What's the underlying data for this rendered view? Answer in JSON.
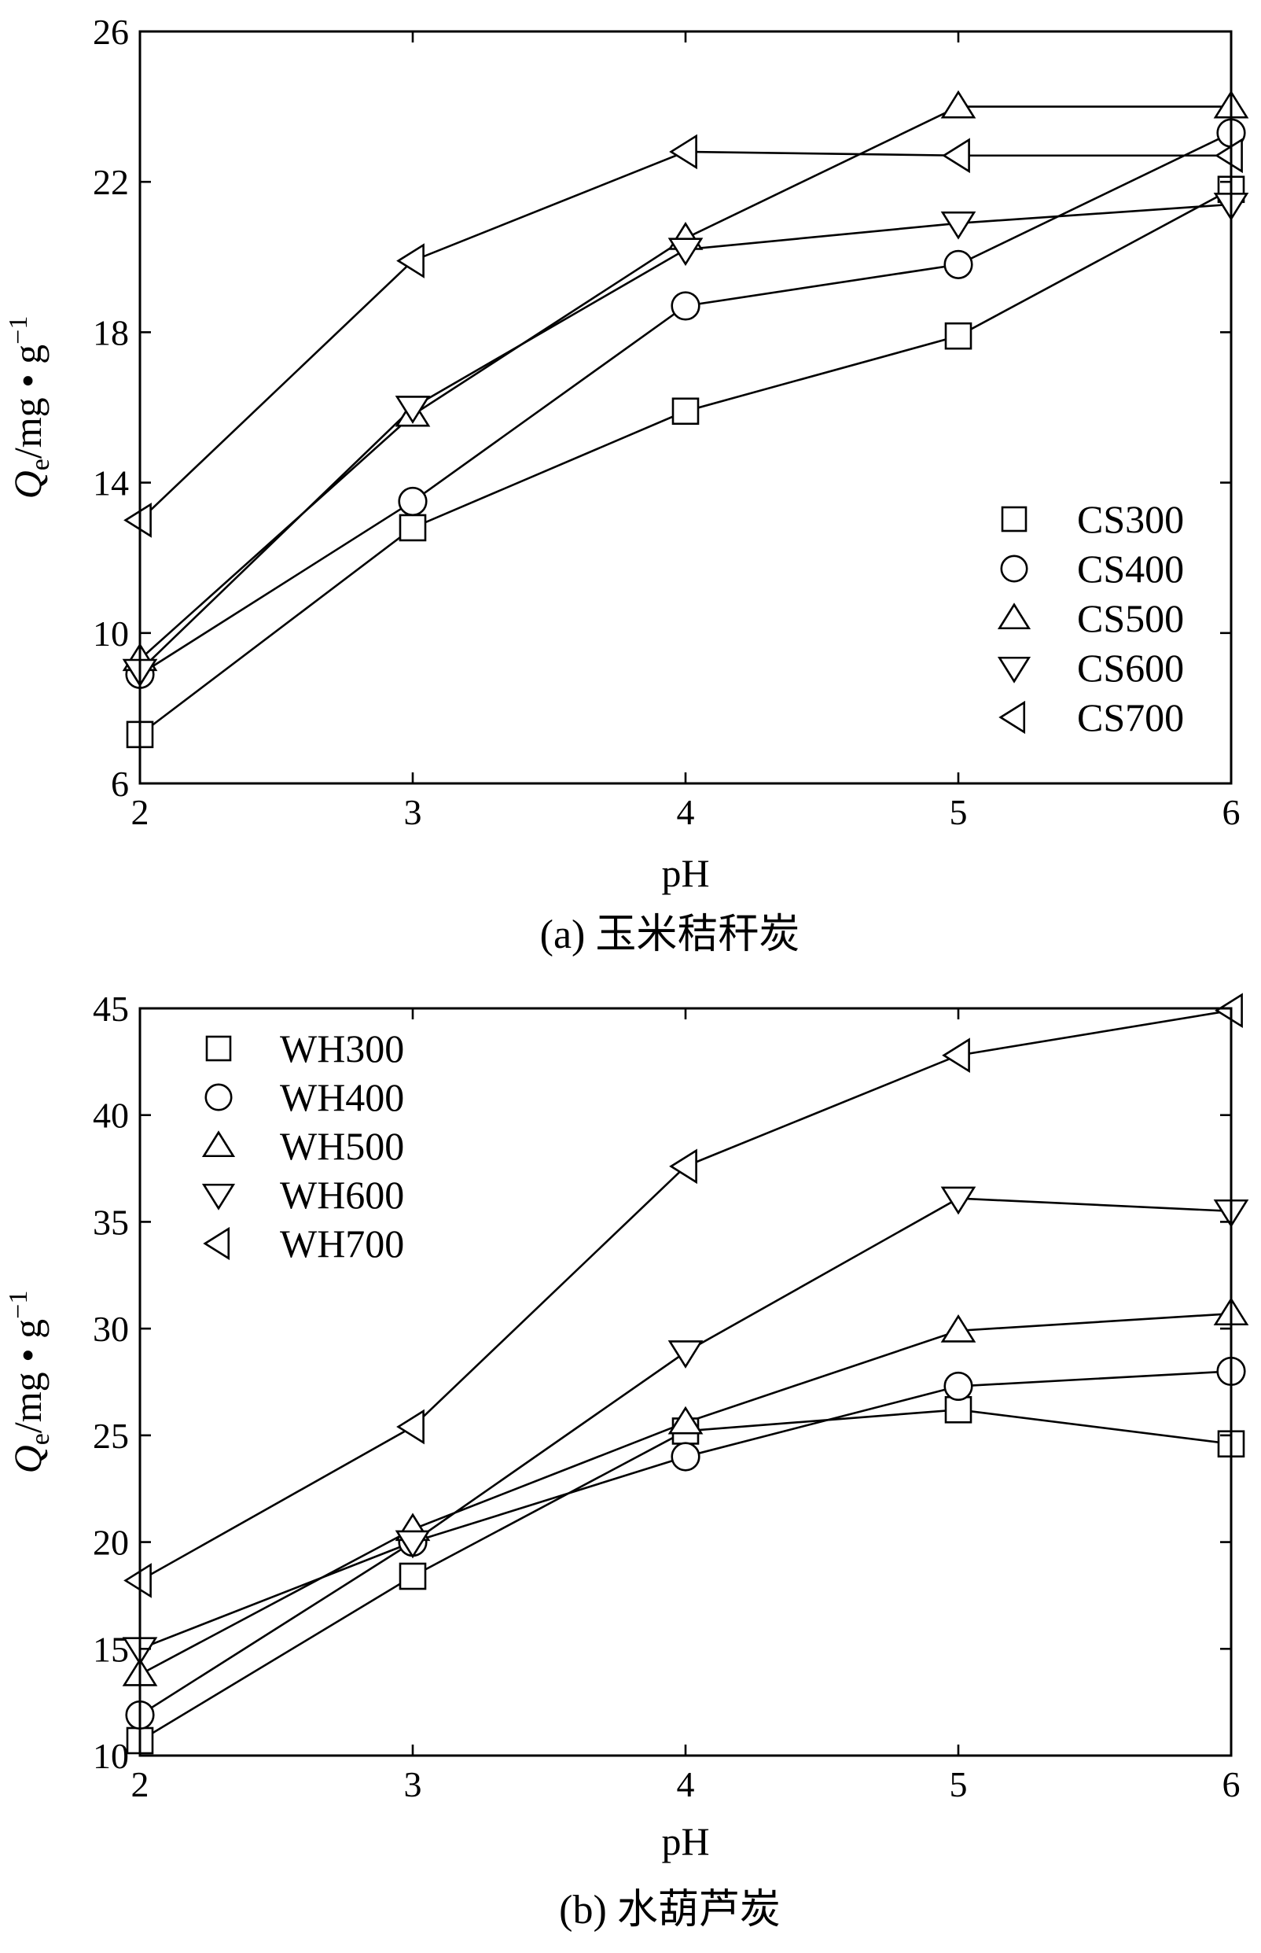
{
  "chart_data": [
    {
      "type": "line",
      "panel_id": "a",
      "caption_prefix": "(a)",
      "caption_text": "玉米秸秆炭",
      "xlabel": "pH",
      "ylabel_main": "Q",
      "ylabel_sub": "e",
      "ylabel_units": "/mg • g",
      "ylabel_sup": "−1",
      "xlim": [
        2,
        6
      ],
      "ylim": [
        6,
        26
      ],
      "xticks": [
        2,
        3,
        4,
        5,
        6
      ],
      "yticks": [
        6,
        10,
        14,
        18,
        22,
        26
      ],
      "legend_position": "bottom-right",
      "x": [
        2,
        3,
        4,
        5,
        6
      ],
      "series": [
        {
          "name": "CS300",
          "marker": "square",
          "values": [
            7.3,
            12.8,
            15.9,
            17.9,
            21.8
          ]
        },
        {
          "name": "CS400",
          "marker": "circle",
          "values": [
            8.9,
            13.5,
            18.7,
            19.8,
            23.3
          ]
        },
        {
          "name": "CS500",
          "marker": "triangle-up",
          "values": [
            9.3,
            15.8,
            20.5,
            24.0,
            24.0
          ]
        },
        {
          "name": "CS600",
          "marker": "triangle-down",
          "values": [
            9.0,
            16.0,
            20.2,
            20.9,
            21.4
          ]
        },
        {
          "name": "CS700",
          "marker": "triangle-left",
          "values": [
            13.0,
            19.9,
            22.8,
            22.7,
            22.7
          ]
        }
      ]
    },
    {
      "type": "line",
      "panel_id": "b",
      "caption_prefix": "(b)",
      "caption_text": "水葫芦炭",
      "xlabel": "pH",
      "ylabel_main": "Q",
      "ylabel_sub": "e",
      "ylabel_units": "/mg • g",
      "ylabel_sup": "−1",
      "xlim": [
        2,
        6
      ],
      "ylim": [
        10,
        45
      ],
      "xticks": [
        2,
        3,
        4,
        5,
        6
      ],
      "yticks": [
        10,
        15,
        20,
        25,
        30,
        35,
        40,
        45
      ],
      "legend_position": "top-left",
      "x": [
        2,
        3,
        4,
        5,
        6
      ],
      "series": [
        {
          "name": "WH300",
          "marker": "square",
          "values": [
            10.7,
            18.4,
            25.2,
            26.2,
            24.6
          ]
        },
        {
          "name": "WH400",
          "marker": "circle",
          "values": [
            11.9,
            20.0,
            24.0,
            27.3,
            28.0
          ]
        },
        {
          "name": "WH500",
          "marker": "triangle-up",
          "values": [
            13.8,
            20.6,
            25.6,
            29.9,
            30.7
          ]
        },
        {
          "name": "WH600",
          "marker": "triangle-down",
          "values": [
            15.0,
            20.0,
            28.9,
            36.1,
            35.5
          ]
        },
        {
          "name": "WH700",
          "marker": "triangle-left",
          "values": [
            18.2,
            25.4,
            37.6,
            42.8,
            44.9
          ]
        }
      ]
    }
  ]
}
